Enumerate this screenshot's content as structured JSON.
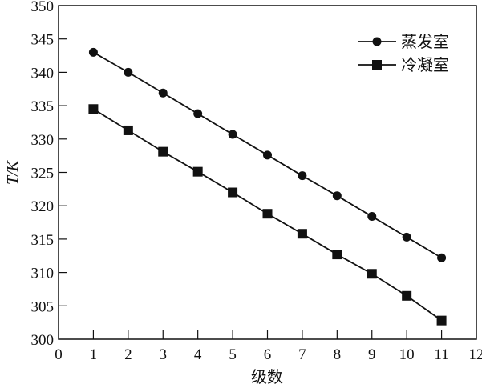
{
  "chart_data": {
    "type": "line",
    "title": "",
    "xlabel": "级数",
    "ylabel": "T/K",
    "xlim": [
      0,
      12
    ],
    "ylim": [
      300,
      350
    ],
    "xticks": [
      "0",
      "1",
      "2",
      "3",
      "4",
      "5",
      "6",
      "7",
      "8",
      "9",
      "10",
      "11",
      "12"
    ],
    "yticks": [
      "300",
      "305",
      "310",
      "315",
      "320",
      "325",
      "330",
      "335",
      "340",
      "345",
      "350"
    ],
    "grid": false,
    "legend_position": "top-right",
    "x": [
      1,
      2,
      3,
      4,
      5,
      6,
      7,
      8,
      9,
      10,
      11
    ],
    "series": [
      {
        "name": "蒸发室",
        "marker": "circle",
        "values": [
          343.0,
          340.0,
          336.9,
          333.8,
          330.7,
          327.6,
          324.5,
          321.5,
          318.4,
          315.3,
          312.2
        ]
      },
      {
        "name": "冷凝室",
        "marker": "square",
        "values": [
          334.5,
          331.3,
          328.1,
          325.1,
          322.0,
          318.8,
          315.8,
          312.7,
          309.8,
          306.5,
          302.8
        ]
      }
    ],
    "color": "#111111"
  }
}
